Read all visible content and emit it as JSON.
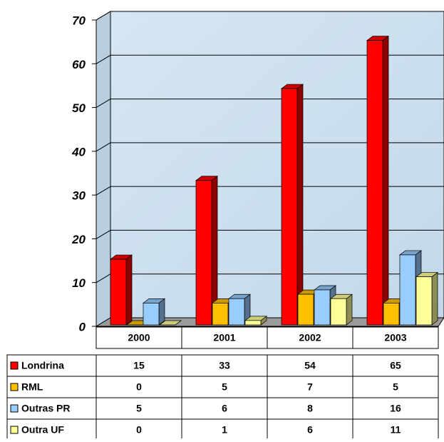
{
  "chart_data": {
    "type": "bar3d",
    "categories": [
      "2000",
      "2001",
      "2002",
      "2003"
    ],
    "series": [
      {
        "name": "Londrina",
        "color": "#ff0000",
        "values": [
          15,
          33,
          54,
          65
        ]
      },
      {
        "name": "RML",
        "color": "#ffc000",
        "values": [
          0,
          5,
          7,
          5
        ]
      },
      {
        "name": "Outras PR",
        "color": "#99ccff",
        "values": [
          5,
          6,
          8,
          16
        ]
      },
      {
        "name": "Outra UF",
        "color": "#ffff99",
        "values": [
          0,
          1,
          6,
          11
        ]
      }
    ],
    "ylim": [
      0,
      70
    ],
    "yticks": [
      0,
      10,
      20,
      30,
      40,
      50,
      60,
      70
    ],
    "grid": true
  }
}
